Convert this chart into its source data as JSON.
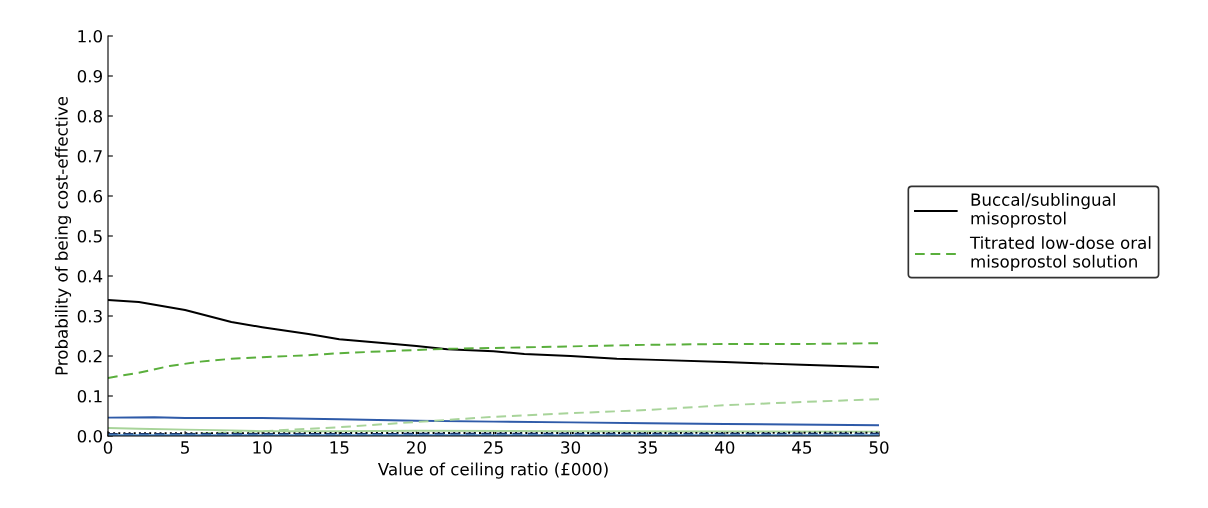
{
  "chart_data": {
    "type": "line",
    "xlabel": "Value of ceiling ratio (£000)",
    "ylabel": "Probability of being cost-effective",
    "xlim": [
      0,
      50
    ],
    "xticks": [
      0,
      5,
      10,
      15,
      20,
      25,
      30,
      35,
      40,
      45,
      50
    ],
    "ylim": [
      0,
      1
    ],
    "yticks": [
      {
        "value": 0,
        "label": "0.0"
      },
      0.1,
      0.2,
      0.3,
      0.4,
      0.5,
      0.6,
      0.7,
      0.8,
      0.9,
      {
        "value": 1,
        "label": "1.0"
      }
    ],
    "grid": false,
    "legend": "right",
    "marker": "none",
    "series": [
      {
        "name": "Buccal/sublingual misoprostol",
        "color": "#000000",
        "line_style": "solid",
        "x": [
          0,
          2,
          5,
          8,
          10,
          13,
          15,
          18,
          20,
          22,
          25,
          27,
          30,
          33,
          35,
          40,
          45,
          50
        ],
        "values": [
          0.34,
          0.335,
          0.315,
          0.285,
          0.272,
          0.255,
          0.242,
          0.232,
          0.225,
          0.217,
          0.212,
          0.205,
          0.2,
          0.193,
          0.191,
          0.185,
          0.178,
          0.172
        ]
      },
      {
        "name": "Titrated low-dose oral misoprostol solution",
        "color": "#5aaf3c",
        "line_style": "dashed",
        "x": [
          0,
          1,
          2,
          4,
          6,
          8,
          10,
          13,
          15,
          18,
          20,
          22,
          25,
          30,
          35,
          40,
          45,
          50
        ],
        "values": [
          0.145,
          0.152,
          0.158,
          0.175,
          0.186,
          0.193,
          0.197,
          0.202,
          0.207,
          0.212,
          0.215,
          0.218,
          0.22,
          0.224,
          0.228,
          0.23,
          0.23,
          0.232
        ]
      },
      {
        "color": "#2e5aa8",
        "line_style": "solid",
        "x": [
          0,
          3,
          5,
          10,
          15,
          20,
          25,
          30,
          35,
          40,
          50
        ],
        "values": [
          0.046,
          0.047,
          0.045,
          0.045,
          0.042,
          0.038,
          0.036,
          0.034,
          0.032,
          0.03,
          0.027
        ]
      },
      {
        "color": "#a8d49a",
        "line_style": "dashed",
        "x": [
          0,
          5,
          10,
          15,
          20,
          25,
          30,
          35,
          40,
          45,
          50
        ],
        "values": [
          0.004,
          0.005,
          0.012,
          0.022,
          0.035,
          0.048,
          0.057,
          0.065,
          0.077,
          0.085,
          0.092
        ]
      },
      {
        "color": "#a8d49a",
        "line_style": "solid",
        "x": [
          0,
          2,
          5,
          8,
          10,
          15,
          20,
          30,
          50
        ],
        "values": [
          0.02,
          0.018,
          0.016,
          0.014,
          0.012,
          0.012,
          0.013,
          0.012,
          0.011
        ]
      },
      {
        "color": "#000000",
        "line_style": "dotted",
        "x": [
          0,
          50
        ],
        "values": [
          0.007,
          0.008
        ]
      },
      {
        "color": "#1f3a6e",
        "line_style": "dashed",
        "x": [
          0,
          50
        ],
        "values": [
          0.005,
          0.006
        ]
      },
      {
        "color": "#4f8fd0",
        "line_style": "solid",
        "x": [
          0,
          50
        ],
        "values": [
          0.002,
          0.002
        ]
      }
    ]
  }
}
